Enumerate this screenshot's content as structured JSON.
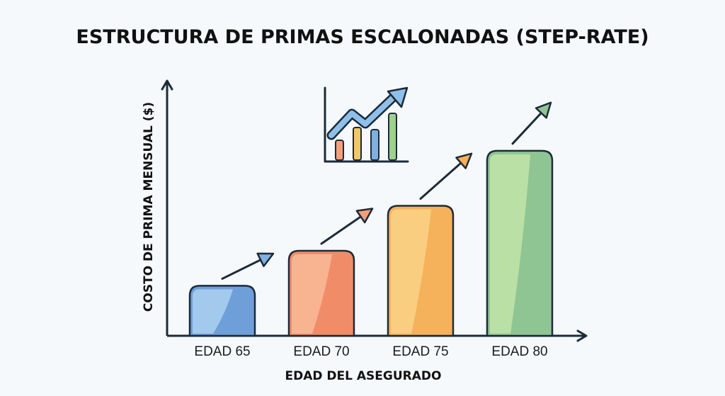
{
  "title": "ESTRUCTURA DE PRIMAS ESCALONADAS (STEP-RATE)",
  "icons": {
    "growth": "growth-chart-icon",
    "step_arrow": "trend-arrow-icon"
  },
  "chart_data": {
    "type": "bar",
    "title": "ESTRUCTURA DE PRIMAS ESCALONADAS (STEP-RATE)",
    "xlabel": "EDAD DEL ASEGURADO",
    "ylabel": "COSTO DE PRIMA MENSUAL ($)",
    "categories": [
      "EDAD 65",
      "EDAD 70",
      "EDAD 75",
      "EDAD 80"
    ],
    "values": [
      1.0,
      1.7,
      2.6,
      3.7
    ],
    "ylim": [
      0,
      5.1
    ],
    "grid": false,
    "legend": "none",
    "colors": [
      "#6f9fd8",
      "#f08d68",
      "#f5b25a",
      "#8fc593"
    ],
    "light_colors": [
      "#a9cdf0",
      "#f8b896",
      "#fbd085",
      "#bfe2a7"
    ],
    "stroke": "#1c2b3a"
  }
}
